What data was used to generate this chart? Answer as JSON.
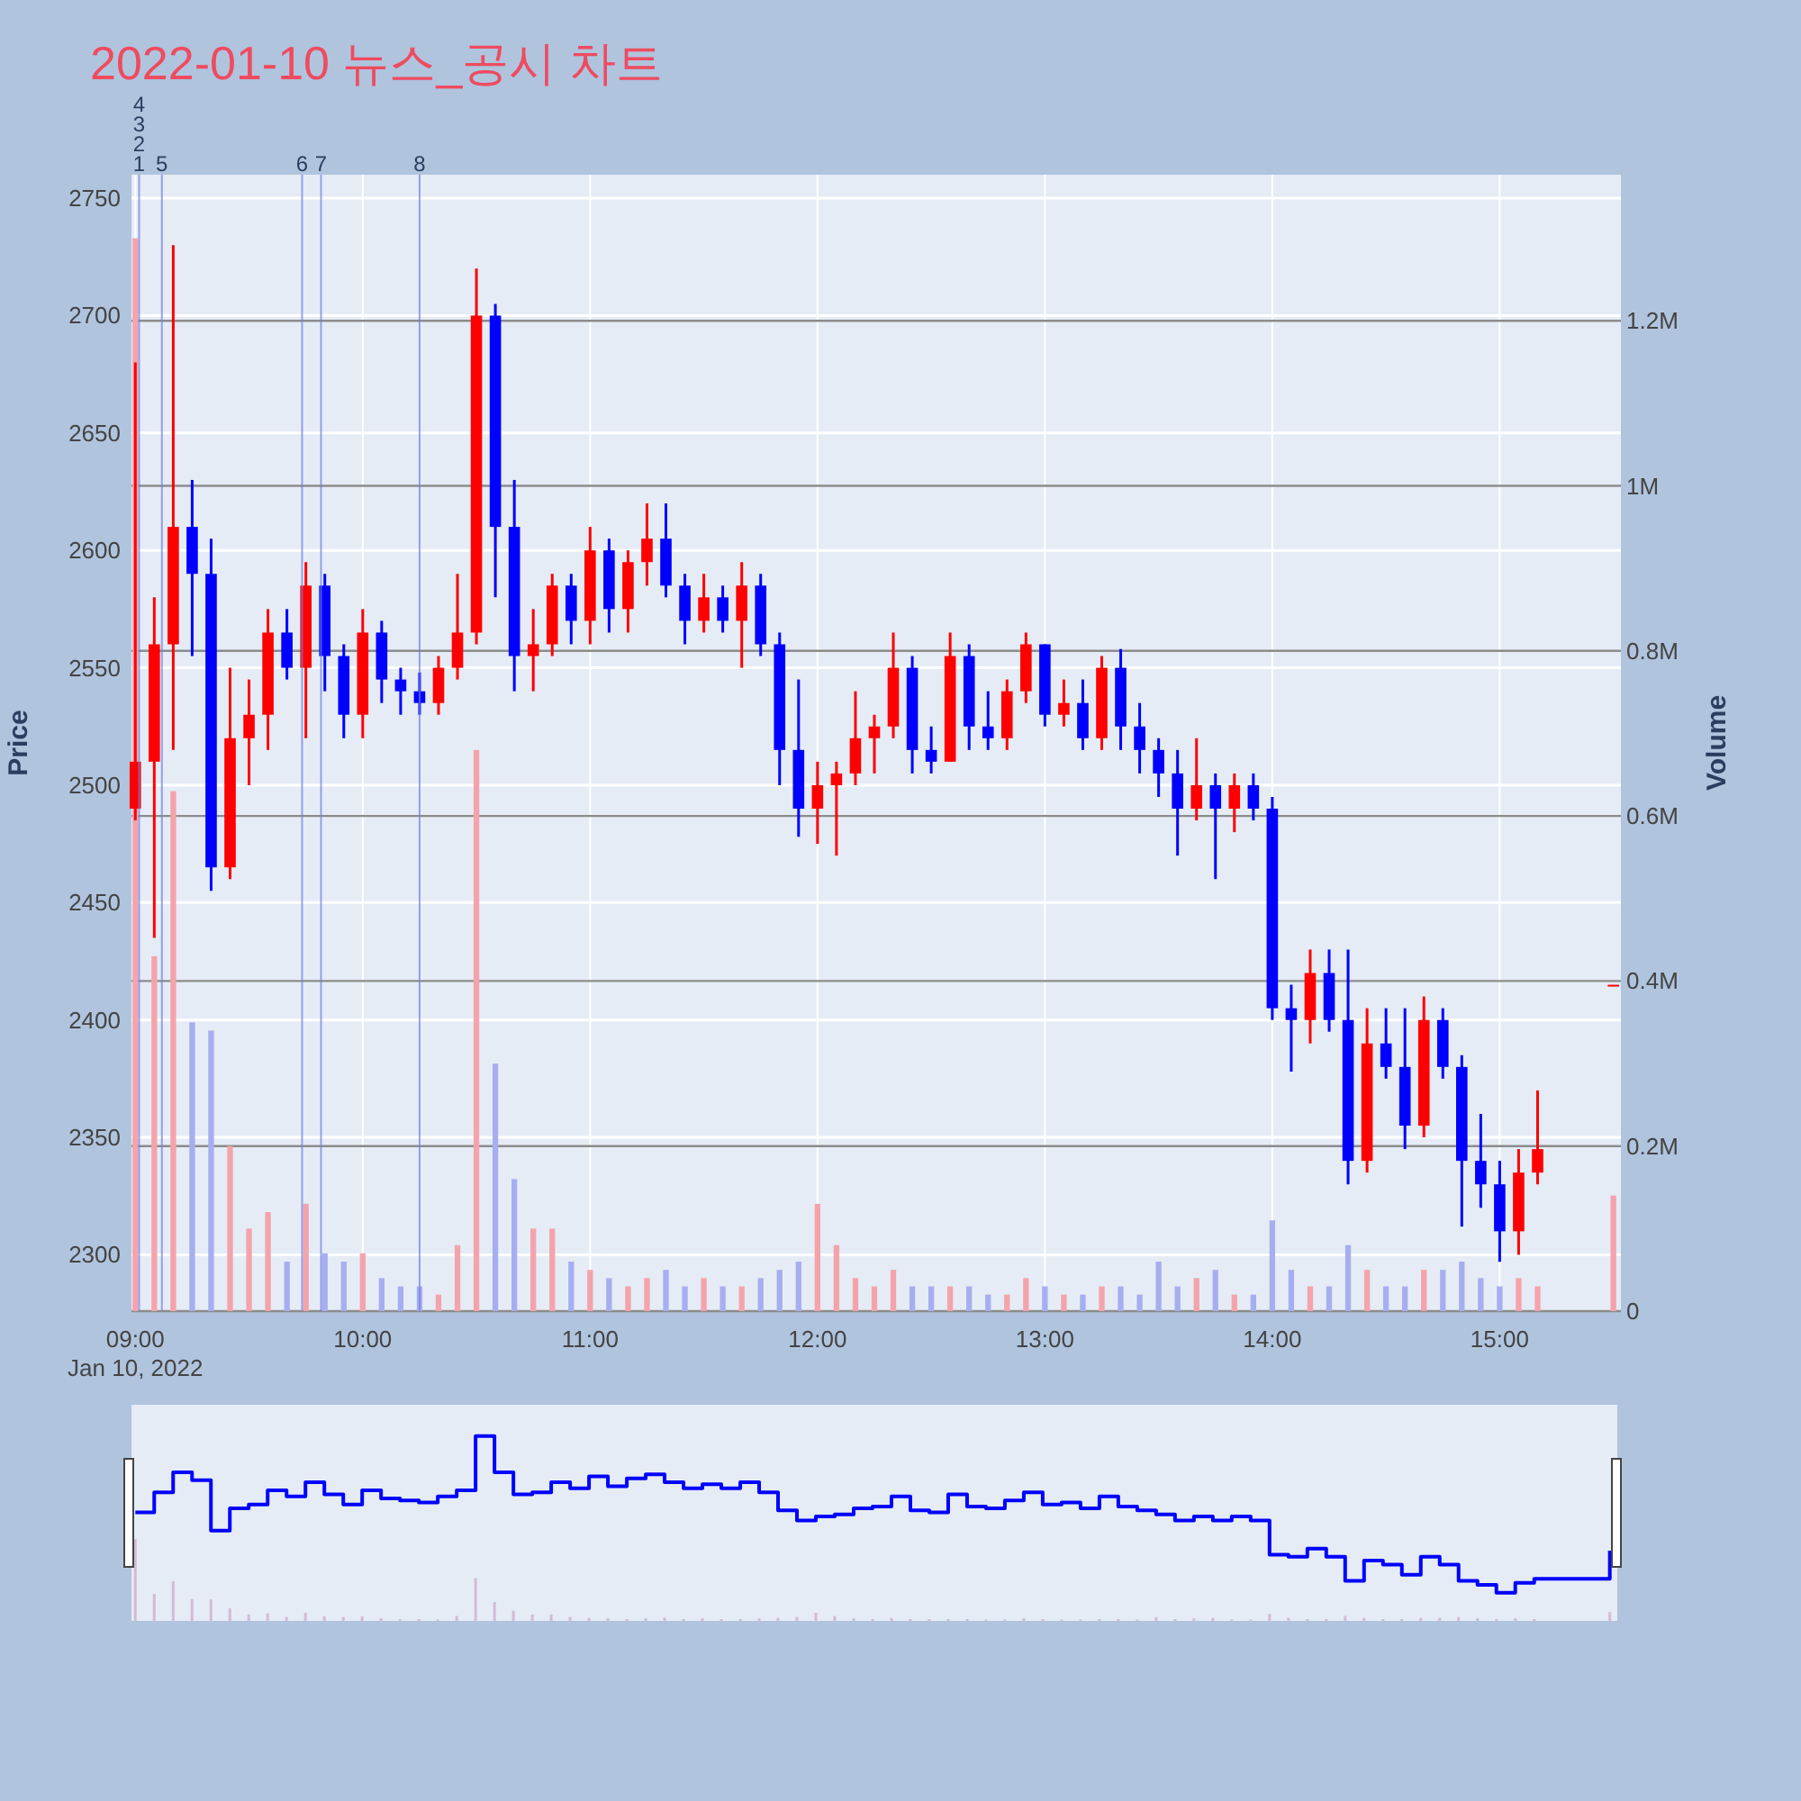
{
  "chart_data": {
    "type": "candlestick",
    "title": "2022-01-10 뉴스_공시 차트",
    "ylabel": "Price",
    "y2label": "Volume",
    "x": [
      9,
      9.0833,
      9.1667,
      9.25,
      9.3333,
      9.4167,
      9.5,
      9.5833,
      9.6667,
      9.75,
      9.8333,
      9.9167,
      10,
      10.0833,
      10.1667,
      10.25,
      10.3333,
      10.4167,
      10.5,
      10.5833,
      10.6667,
      10.75,
      10.8333,
      10.9167,
      11,
      11.0833,
      11.1667,
      11.25,
      11.3333,
      11.4167,
      11.5,
      11.5833,
      11.6667,
      11.75,
      11.8333,
      11.9167,
      12,
      12.0833,
      12.1667,
      12.25,
      12.3333,
      12.4167,
      12.5,
      12.5833,
      12.6667,
      12.75,
      12.8333,
      12.9167,
      13,
      13.0833,
      13.1667,
      13.25,
      13.3333,
      13.4167,
      13.5,
      13.5833,
      13.6667,
      13.75,
      13.8333,
      13.9167,
      14,
      14.0833,
      14.1667,
      14.25,
      14.3333,
      14.4167,
      14.5,
      14.5833,
      14.6667,
      14.75,
      14.8333,
      14.9167,
      15,
      15.0833,
      15.1667,
      15.5
    ],
    "series": [
      {
        "ohlc": [
          [
            2490,
            2680,
            2485,
            2510
          ],
          [
            2510,
            2580,
            2435,
            2560
          ],
          [
            2560,
            2730,
            2515,
            2610
          ],
          [
            2610,
            2630,
            2555,
            2590
          ],
          [
            2590,
            2605,
            2455,
            2465
          ],
          [
            2465,
            2550,
            2460,
            2520
          ],
          [
            2520,
            2545,
            2500,
            2530
          ],
          [
            2530,
            2575,
            2515,
            2565
          ],
          [
            2565,
            2575,
            2545,
            2550
          ],
          [
            2550,
            2595,
            2520,
            2585
          ],
          [
            2585,
            2590,
            2540,
            2555
          ],
          [
            2555,
            2560,
            2520,
            2530
          ],
          [
            2530,
            2575,
            2520,
            2565
          ],
          [
            2565,
            2570,
            2535,
            2545
          ],
          [
            2545,
            2550,
            2530,
            2540
          ],
          [
            2540,
            2548,
            2530,
            2535
          ],
          [
            2535,
            2555,
            2530,
            2550
          ],
          [
            2550,
            2590,
            2545,
            2565
          ],
          [
            2565,
            2720,
            2560,
            2700
          ],
          [
            2700,
            2705,
            2580,
            2610
          ],
          [
            2610,
            2630,
            2540,
            2555
          ],
          [
            2555,
            2575,
            2540,
            2560
          ],
          [
            2560,
            2590,
            2555,
            2585
          ],
          [
            2585,
            2590,
            2560,
            2570
          ],
          [
            2570,
            2610,
            2560,
            2600
          ],
          [
            2600,
            2605,
            2565,
            2575
          ],
          [
            2575,
            2600,
            2565,
            2595
          ],
          [
            2595,
            2620,
            2585,
            2605
          ],
          [
            2605,
            2620,
            2580,
            2585
          ],
          [
            2585,
            2590,
            2560,
            2570
          ],
          [
            2570,
            2590,
            2565,
            2580
          ],
          [
            2580,
            2585,
            2565,
            2570
          ],
          [
            2570,
            2595,
            2550,
            2585
          ],
          [
            2585,
            2590,
            2555,
            2560
          ],
          [
            2560,
            2565,
            2500,
            2515
          ],
          [
            2515,
            2545,
            2478,
            2490
          ],
          [
            2490,
            2510,
            2475,
            2500
          ],
          [
            2500,
            2510,
            2470,
            2505
          ],
          [
            2505,
            2540,
            2500,
            2520
          ],
          [
            2520,
            2530,
            2505,
            2525
          ],
          [
            2525,
            2565,
            2520,
            2550
          ],
          [
            2550,
            2555,
            2505,
            2515
          ],
          [
            2515,
            2525,
            2505,
            2510
          ],
          [
            2510,
            2565,
            2510,
            2555
          ],
          [
            2555,
            2560,
            2515,
            2525
          ],
          [
            2525,
            2540,
            2515,
            2520
          ],
          [
            2520,
            2545,
            2515,
            2540
          ],
          [
            2540,
            2565,
            2535,
            2560
          ],
          [
            2560,
            2560,
            2525,
            2530
          ],
          [
            2530,
            2545,
            2525,
            2535
          ],
          [
            2535,
            2545,
            2515,
            2520
          ],
          [
            2520,
            2555,
            2515,
            2550
          ],
          [
            2550,
            2558,
            2515,
            2525
          ],
          [
            2525,
            2535,
            2505,
            2515
          ],
          [
            2515,
            2520,
            2495,
            2505
          ],
          [
            2505,
            2515,
            2470,
            2490
          ],
          [
            2490,
            2520,
            2485,
            2500
          ],
          [
            2500,
            2505,
            2460,
            2490
          ],
          [
            2490,
            2505,
            2480,
            2500
          ],
          [
            2500,
            2505,
            2485,
            2490
          ],
          [
            2490,
            2495,
            2400,
            2405
          ],
          [
            2405,
            2415,
            2378,
            2400
          ],
          [
            2400,
            2430,
            2390,
            2420
          ],
          [
            2420,
            2430,
            2395,
            2400
          ],
          [
            2400,
            2430,
            2330,
            2340
          ],
          [
            2340,
            2405,
            2335,
            2390
          ],
          [
            2390,
            2405,
            2375,
            2380
          ],
          [
            2380,
            2405,
            2345,
            2355
          ],
          [
            2355,
            2410,
            2350,
            2400
          ],
          [
            2400,
            2405,
            2375,
            2380
          ],
          [
            2380,
            2385,
            2312,
            2340
          ],
          [
            2340,
            2360,
            2320,
            2330
          ],
          [
            2330,
            2340,
            2297,
            2310
          ],
          [
            2310,
            2345,
            2300,
            2335
          ],
          [
            2335,
            2370,
            2330,
            2345
          ],
          [
            2415,
            2415,
            2415,
            2415
          ]
        ],
        "colors": [
          "#ff0000",
          "#ff0000",
          "#ff0000",
          "#0000ff",
          "#0000ff",
          "#ff0000",
          "#ff0000",
          "#ff0000",
          "#0000ff",
          "#ff0000",
          "#0000ff",
          "#0000ff",
          "#ff0000",
          "#0000ff",
          "#0000ff",
          "#0000ff",
          "#ff0000",
          "#ff0000",
          "#ff0000",
          "#0000ff",
          "#0000ff",
          "#ff0000",
          "#ff0000",
          "#0000ff",
          "#ff0000",
          "#0000ff",
          "#ff0000",
          "#ff0000",
          "#0000ff",
          "#0000ff",
          "#ff0000",
          "#0000ff",
          "#ff0000",
          "#0000ff",
          "#0000ff",
          "#0000ff",
          "#ff0000",
          "#ff0000",
          "#ff0000",
          "#ff0000",
          "#ff0000",
          "#0000ff",
          "#0000ff",
          "#ff0000",
          "#0000ff",
          "#0000ff",
          "#ff0000",
          "#ff0000",
          "#0000ff",
          "#ff0000",
          "#0000ff",
          "#ff0000",
          "#0000ff",
          "#0000ff",
          "#0000ff",
          "#0000ff",
          "#ff0000",
          "#0000ff",
          "#ff0000",
          "#0000ff",
          "#0000ff",
          "#0000ff",
          "#ff0000",
          "#0000ff",
          "#0000ff",
          "#ff0000",
          "#0000ff",
          "#0000ff",
          "#ff0000",
          "#0000ff",
          "#0000ff",
          "#0000ff",
          "#0000ff",
          "#ff0000",
          "#ff0000",
          "#ff0000"
        ]
      },
      {
        "type": "bar",
        "axis": "y2",
        "values": [
          1300000,
          430000,
          630000,
          350000,
          340000,
          200000,
          100000,
          120000,
          60000,
          130000,
          70000,
          60000,
          70000,
          40000,
          30000,
          30000,
          20000,
          80000,
          680000,
          300000,
          160000,
          100000,
          100000,
          60000,
          50000,
          40000,
          30000,
          40000,
          50000,
          30000,
          40000,
          30000,
          30000,
          40000,
          50000,
          60000,
          130000,
          80000,
          40000,
          30000,
          50000,
          30000,
          30000,
          30000,
          30000,
          20000,
          20000,
          40000,
          30000,
          20000,
          20000,
          30000,
          30000,
          20000,
          60000,
          30000,
          40000,
          50000,
          20000,
          20000,
          110000,
          50000,
          30000,
          30000,
          80000,
          50000,
          30000,
          30000,
          50000,
          50000,
          60000,
          40000,
          30000,
          40000,
          30000,
          140000
        ],
        "colors": [
          "#f5a3ab",
          "#f5a3ab",
          "#f5a3ab",
          "#a7aef0",
          "#a7aef0",
          "#f5a3ab",
          "#f5a3ab",
          "#f5a3ab",
          "#a7aef0",
          "#f5a3ab",
          "#a7aef0",
          "#a7aef0",
          "#f5a3ab",
          "#a7aef0",
          "#a7aef0",
          "#a7aef0",
          "#f5a3ab",
          "#f5a3ab",
          "#f5a3ab",
          "#a7aef0",
          "#a7aef0",
          "#f5a3ab",
          "#f5a3ab",
          "#a7aef0",
          "#f5a3ab",
          "#a7aef0",
          "#f5a3ab",
          "#f5a3ab",
          "#a7aef0",
          "#a7aef0",
          "#f5a3ab",
          "#a7aef0",
          "#f5a3ab",
          "#a7aef0",
          "#a7aef0",
          "#a7aef0",
          "#f5a3ab",
          "#f5a3ab",
          "#f5a3ab",
          "#f5a3ab",
          "#f5a3ab",
          "#a7aef0",
          "#a7aef0",
          "#f5a3ab",
          "#a7aef0",
          "#a7aef0",
          "#f5a3ab",
          "#f5a3ab",
          "#a7aef0",
          "#f5a3ab",
          "#a7aef0",
          "#f5a3ab",
          "#a7aef0",
          "#a7aef0",
          "#a7aef0",
          "#a7aef0",
          "#f5a3ab",
          "#a7aef0",
          "#f5a3ab",
          "#a7aef0",
          "#a7aef0",
          "#a7aef0",
          "#f5a3ab",
          "#a7aef0",
          "#a7aef0",
          "#f5a3ab",
          "#a7aef0",
          "#a7aef0",
          "#f5a3ab",
          "#a7aef0",
          "#a7aef0",
          "#a7aef0",
          "#a7aef0",
          "#f5a3ab",
          "#f5a3ab",
          "#f5a3ab"
        ]
      }
    ],
    "xlim": [
      8.983,
      15.533
    ],
    "xticks": [
      {
        "value": 9,
        "label": "09:00"
      },
      {
        "value": 10,
        "label": "10:00"
      },
      {
        "value": 11,
        "label": "11:00"
      },
      {
        "value": 12,
        "label": "12:00"
      },
      {
        "value": 13,
        "label": "13:00"
      },
      {
        "value": 14,
        "label": "14:00"
      },
      {
        "value": 15,
        "label": "15:00"
      }
    ],
    "ylim": [
      2276,
      2760
    ],
    "yticks": [
      2300,
      2350,
      2400,
      2450,
      2500,
      2550,
      2600,
      2650,
      2700,
      2750
    ],
    "y2lim": [
      0,
      1377000
    ],
    "y2ticks": [
      0,
      {
        "value": 200000,
        "label": "0.2M"
      },
      {
        "value": 400000,
        "label": "0.4M"
      },
      {
        "value": 600000,
        "label": "0.6M"
      },
      {
        "value": 800000,
        "label": "0.8M"
      },
      {
        "value": 1000000,
        "label": "1M"
      },
      {
        "value": 1200000,
        "label": "1.2M"
      }
    ],
    "grid": true,
    "annotations": [
      "Jan 10, 2022",
      {
        "text": "1",
        "x": 9.0167,
        "y": 2760
      },
      {
        "text": "2",
        "x": 9.0167,
        "y": 2760
      },
      {
        "text": "3",
        "x": 9.0167,
        "y": 2760
      },
      {
        "text": "4",
        "x": 9.0167,
        "y": 2760
      },
      {
        "text": "5",
        "x": 9.1167,
        "y": 2760
      },
      {
        "text": "6",
        "x": 9.7333,
        "y": 2760
      },
      {
        "text": "7",
        "x": 9.8167,
        "y": 2760
      },
      {
        "text": "8",
        "x": 10.25,
        "y": 2760
      }
    ],
    "ref_lines": [
      {
        "axis": "x",
        "value": 9.0167,
        "color": "#6f7fe0"
      },
      {
        "axis": "x",
        "value": 9.1167,
        "color": "#6f7fe0"
      },
      {
        "axis": "x",
        "value": 9.7333,
        "color": "#6f7fe0"
      },
      {
        "axis": "x",
        "value": 9.8167,
        "color": "#6f7fe0"
      },
      {
        "axis": "x",
        "value": 10.25,
        "color": "#6f7fe0"
      }
    ]
  }
}
